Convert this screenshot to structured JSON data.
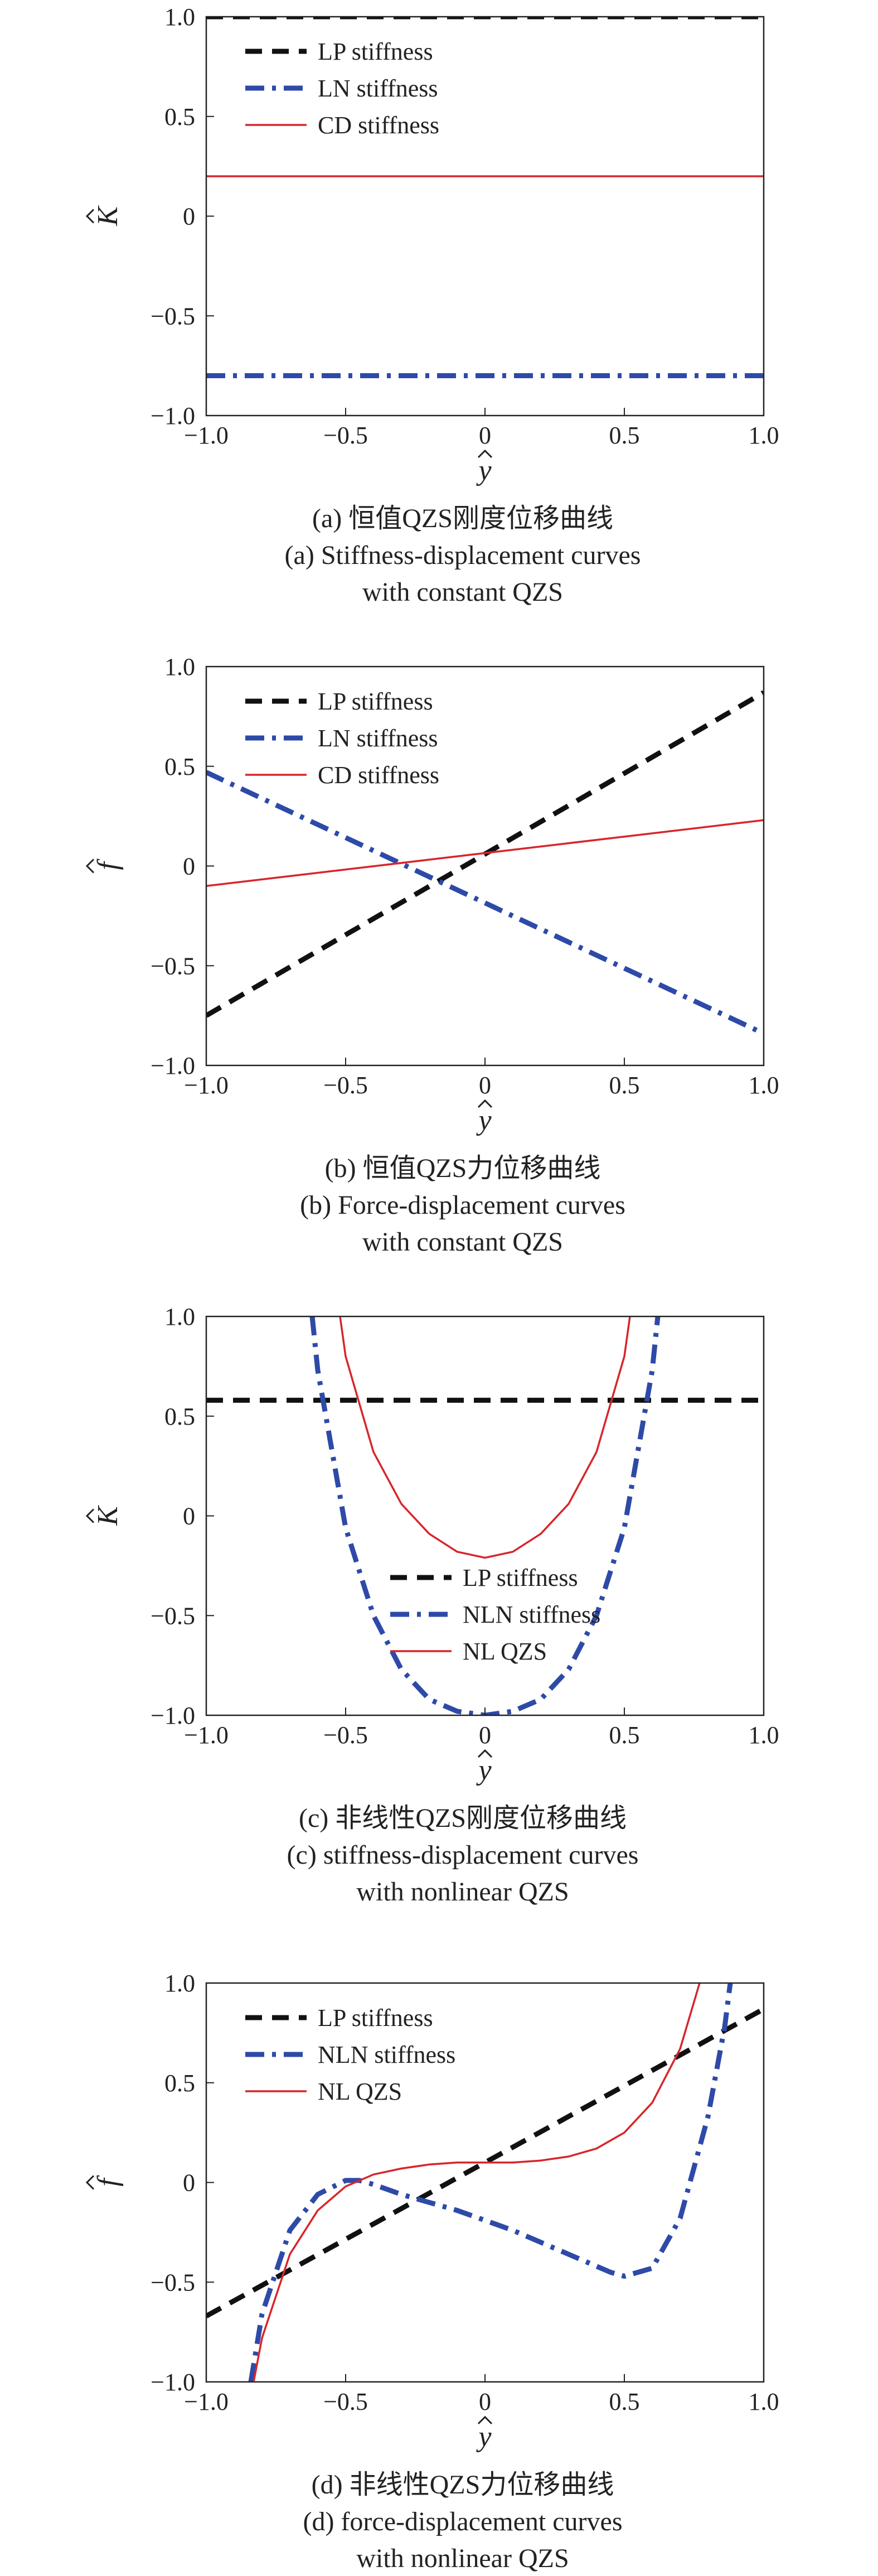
{
  "colors": {
    "lp": "#111111",
    "ln": "#2e4aa8",
    "cd": "#d7262b",
    "axis": "#222222"
  },
  "chart_data": [
    {
      "type": "line",
      "panel": "a",
      "xlabel": "y",
      "ylabel": "K",
      "xlim": [
        -1,
        1
      ],
      "ylim": [
        -1,
        1
      ],
      "xticks": [
        "−1.0",
        "−0.5",
        "0",
        "0.5",
        "1.0"
      ],
      "yticks": [
        "1.0",
        "0.5",
        "0",
        "−0.5",
        "−1.0"
      ],
      "legend_position": "top-left",
      "grid": false,
      "series": [
        {
          "name": "LP stiffness",
          "style": "dashed",
          "color": "#111111",
          "x": [
            -1,
            1
          ],
          "y": [
            1.0,
            1.0
          ]
        },
        {
          "name": "LN stiffness",
          "style": "dash-dot",
          "color": "#2e4aa8",
          "x": [
            -1,
            1
          ],
          "y": [
            -0.8,
            -0.8
          ]
        },
        {
          "name": "CD stiffness",
          "style": "solid",
          "color": "#d7262b",
          "x": [
            -1,
            1
          ],
          "y": [
            0.2,
            0.2
          ]
        }
      ],
      "caption": [
        "(a) 恒值QZS刚度位移曲线",
        "(a) Stiffness-displacement curves",
        "with constant QZS"
      ]
    },
    {
      "type": "line",
      "panel": "b",
      "xlabel": "y",
      "ylabel": "f",
      "xlim": [
        -1,
        1
      ],
      "ylim": [
        -1,
        1
      ],
      "xticks": [
        "−1.0",
        "−0.5",
        "0",
        "0.5",
        "1.0"
      ],
      "yticks": [
        "1.0",
        "0.5",
        "0",
        "−0.5",
        "−1.0"
      ],
      "legend_position": "top-left",
      "grid": false,
      "series": [
        {
          "name": "LP stiffness",
          "style": "dashed",
          "color": "#111111",
          "x": [
            -1,
            1
          ],
          "y": [
            -0.75,
            0.87
          ]
        },
        {
          "name": "LN stiffness",
          "style": "dash-dot",
          "color": "#2e4aa8",
          "x": [
            -1,
            1
          ],
          "y": [
            0.47,
            -0.84
          ]
        },
        {
          "name": "CD stiffness",
          "style": "solid",
          "color": "#d7262b",
          "x": [
            -1,
            1
          ],
          "y": [
            -0.1,
            0.23
          ]
        }
      ],
      "caption": [
        "(b) 恒值QZS力位移曲线",
        "(b) Force-displacement curves",
        "with constant QZS"
      ]
    },
    {
      "type": "line",
      "panel": "c",
      "xlabel": "y",
      "ylabel": "K",
      "xlim": [
        -1,
        1
      ],
      "ylim": [
        -1,
        1
      ],
      "xticks": [
        "−1.0",
        "−0.5",
        "0",
        "0.5",
        "1.0"
      ],
      "yticks": [
        "1.0",
        "0.5",
        "0",
        "−0.5",
        "−1.0"
      ],
      "legend_position": "bottom-center",
      "grid": false,
      "series": [
        {
          "name": "LP stiffness",
          "style": "dashed",
          "color": "#111111",
          "x": [
            -1,
            -0.5,
            0,
            0.5,
            1
          ],
          "y": [
            0.58,
            0.58,
            0.58,
            0.58,
            0.58
          ]
        },
        {
          "name": "NLN stiffness",
          "style": "dash-dot",
          "color": "#2e4aa8",
          "x": [
            -0.62,
            -0.6,
            -0.5,
            -0.4,
            -0.3,
            -0.2,
            -0.1,
            0,
            0.1,
            0.2,
            0.3,
            0.4,
            0.5,
            0.6,
            0.62
          ],
          "y": [
            1.0,
            0.73,
            -0.06,
            -0.5,
            -0.77,
            -0.92,
            -0.98,
            -1.0,
            -0.98,
            -0.92,
            -0.77,
            -0.5,
            -0.06,
            0.73,
            1.0
          ]
        },
        {
          "name": "NL QZS",
          "style": "solid",
          "color": "#d7262b",
          "x": [
            -0.52,
            -0.5,
            -0.4,
            -0.3,
            -0.2,
            -0.1,
            0,
            0.1,
            0.2,
            0.3,
            0.4,
            0.5,
            0.52
          ],
          "y": [
            1.0,
            0.8,
            0.32,
            0.06,
            -0.09,
            -0.18,
            -0.21,
            -0.18,
            -0.09,
            0.06,
            0.32,
            0.8,
            1.0
          ]
        }
      ],
      "caption": [
        "(c) 非线性QZS刚度位移曲线",
        "(c) stiffness-displacement curves",
        "with nonlinear QZS"
      ]
    },
    {
      "type": "line",
      "panel": "d",
      "xlabel": "y",
      "ylabel": "f",
      "xlim": [
        -1,
        1
      ],
      "ylim": [
        -1,
        1
      ],
      "xticks": [
        "−1.0",
        "−0.5",
        "0",
        "0.5",
        "1.0"
      ],
      "yticks": [
        "1.0",
        "0.5",
        "0",
        "−0.5",
        "−1.0"
      ],
      "legend_position": "top-left",
      "grid": false,
      "series": [
        {
          "name": "LP stiffness",
          "style": "dashed",
          "color": "#111111",
          "x": [
            -1,
            1
          ],
          "y": [
            -0.67,
            0.87
          ]
        },
        {
          "name": "NLN stiffness",
          "style": "dash-dot",
          "color": "#2e4aa8",
          "x": [
            -0.84,
            -0.8,
            -0.7,
            -0.6,
            -0.5,
            -0.45,
            -0.4,
            -0.3,
            -0.2,
            -0.1,
            0,
            0.1,
            0.2,
            0.3,
            0.4,
            0.45,
            0.5,
            0.6,
            0.7,
            0.8,
            0.86,
            0.88
          ],
          "y": [
            -1.0,
            -0.66,
            -0.24,
            -0.06,
            0.01,
            0.01,
            -0.01,
            -0.06,
            -0.1,
            -0.14,
            -0.19,
            -0.24,
            -0.3,
            -0.36,
            -0.42,
            -0.45,
            -0.47,
            -0.43,
            -0.18,
            0.33,
            0.78,
            1.0
          ]
        },
        {
          "name": "NL QZS",
          "style": "solid",
          "color": "#d7262b",
          "x": [
            -0.83,
            -0.8,
            -0.7,
            -0.6,
            -0.5,
            -0.4,
            -0.3,
            -0.2,
            -0.1,
            0,
            0.1,
            0.2,
            0.3,
            0.4,
            0.5,
            0.6,
            0.7,
            0.77
          ],
          "y": [
            -1.0,
            -0.78,
            -0.36,
            -0.14,
            -0.02,
            0.04,
            0.07,
            0.09,
            0.1,
            0.1,
            0.1,
            0.11,
            0.13,
            0.17,
            0.25,
            0.4,
            0.67,
            1.0
          ]
        }
      ],
      "caption": [
        "(d) 非线性QZS力位移曲线",
        "(d) force-displacement curves",
        "with nonlinear QZS"
      ]
    }
  ]
}
